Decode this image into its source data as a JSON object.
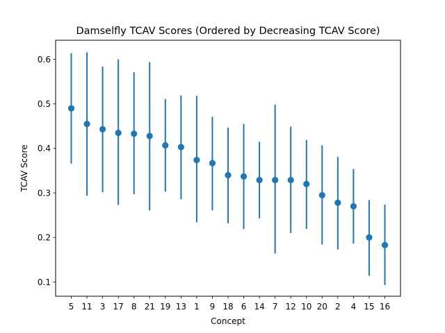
{
  "chart_data": {
    "type": "scatter",
    "title": "Damselfly TCAV Scores (Ordered by Decreasing TCAV Score)",
    "xlabel": "Concept",
    "ylabel": "TCAV Score",
    "categories": [
      "5",
      "11",
      "3",
      "17",
      "8",
      "21",
      "19",
      "13",
      "1",
      "9",
      "18",
      "6",
      "14",
      "7",
      "12",
      "10",
      "20",
      "2",
      "4",
      "15",
      "16"
    ],
    "series": [
      {
        "values": [
          0.49,
          0.455,
          0.443,
          0.435,
          0.433,
          0.428,
          0.407,
          0.403,
          0.374,
          0.367,
          0.34,
          0.337,
          0.329,
          0.329,
          0.329,
          0.32,
          0.295,
          0.278,
          0.27,
          0.2,
          0.183
        ],
        "err_low": [
          0.366,
          0.294,
          0.302,
          0.273,
          0.297,
          0.261,
          0.303,
          0.286,
          0.234,
          0.261,
          0.232,
          0.219,
          0.243,
          0.164,
          0.21,
          0.219,
          0.184,
          0.173,
          0.186,
          0.114,
          0.093
        ],
        "err_high": [
          0.614,
          0.616,
          0.584,
          0.6,
          0.571,
          0.594,
          0.511,
          0.519,
          0.518,
          0.471,
          0.447,
          0.455,
          0.415,
          0.498,
          0.449,
          0.419,
          0.407,
          0.381,
          0.354,
          0.284,
          0.274
        ]
      }
    ],
    "yticks": [
      0.1,
      0.2,
      0.3,
      0.4,
      0.5,
      0.6
    ],
    "ylim": [
      0.068,
      0.643
    ],
    "grid": false,
    "color": "#1f77b4"
  }
}
